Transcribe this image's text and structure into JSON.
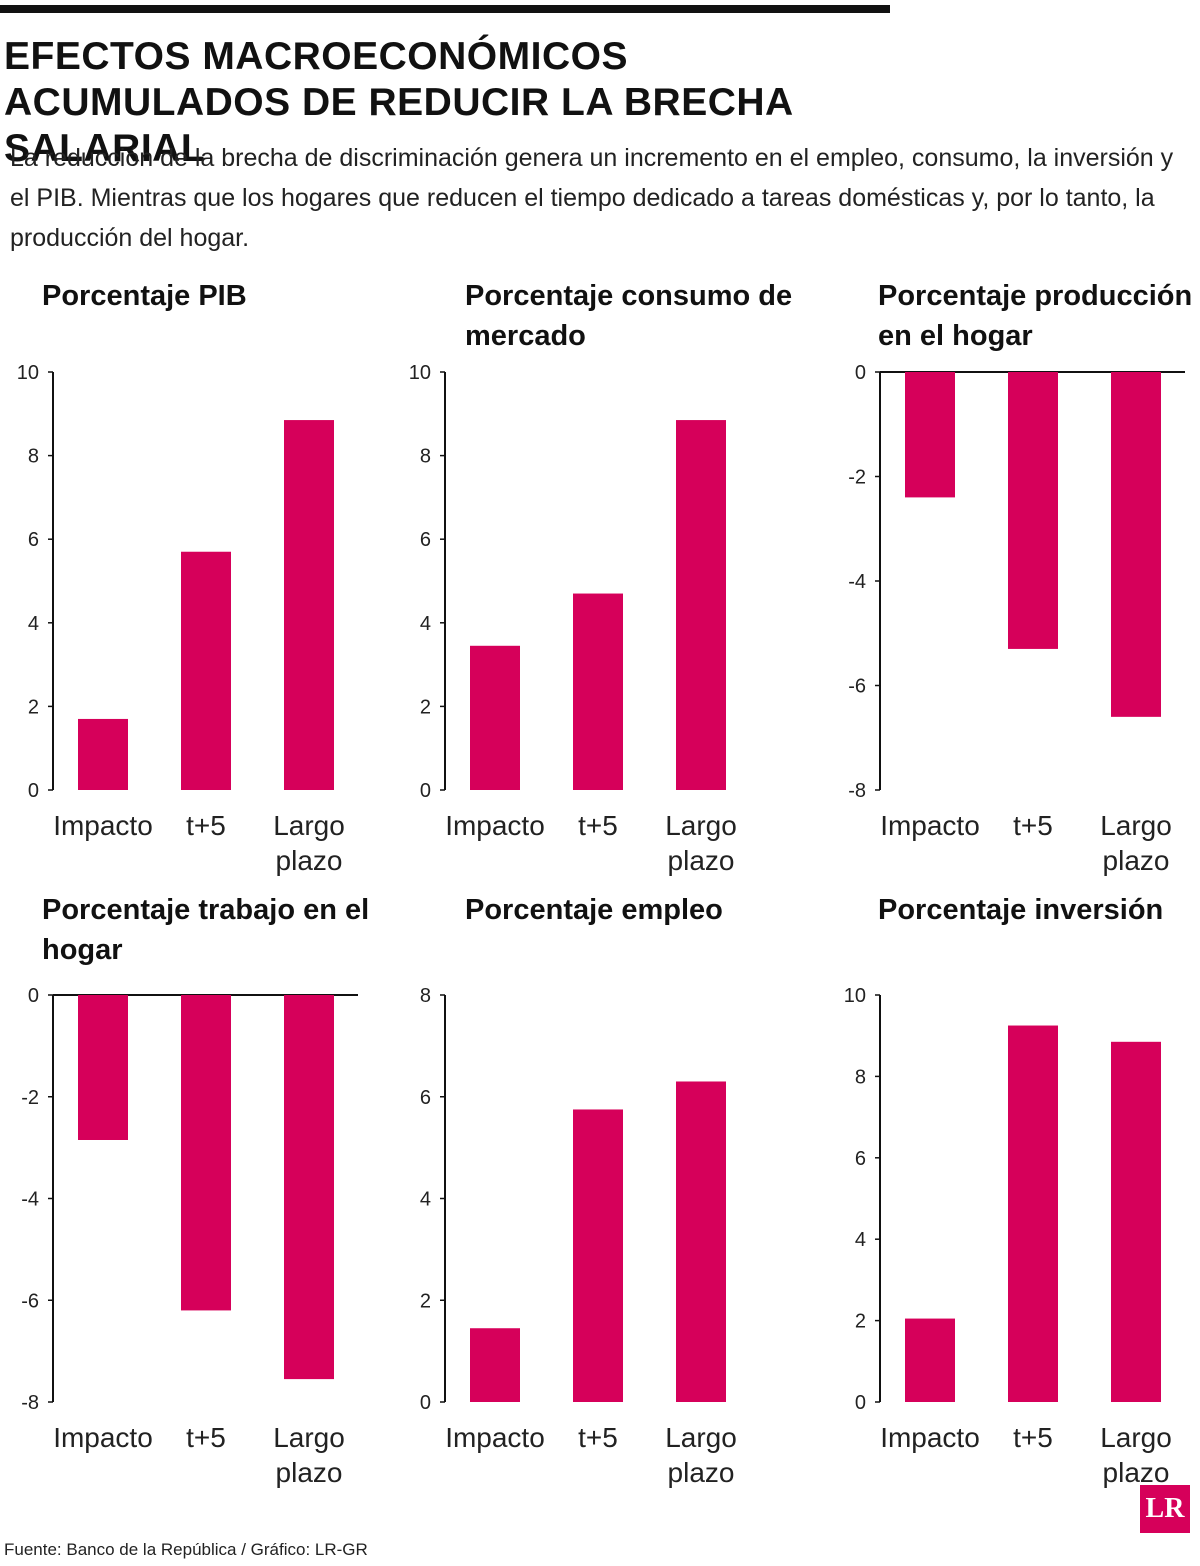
{
  "header": {
    "title": "EFECTOS MACROECONÓMICOS ACUMULADOS DE REDUCIR LA BRECHA SALARIAL",
    "subtitle": "La reducción de la brecha de discriminación genera un incremento en el empleo, consumo, la inversión y el PIB. Mientras que los hogares que reducen el tiempo dedicado a tareas domésticas y, por lo tanto, la producción del hogar."
  },
  "chart_data": [
    {
      "type": "bar",
      "title": "Porcentaje PIB",
      "categories": [
        "Impacto",
        "t+5",
        "Largo plazo"
      ],
      "values": [
        1.7,
        5.7,
        8.85
      ],
      "color": "#d6005a",
      "ylim": [
        0,
        10
      ],
      "yticks": [
        0,
        2,
        4,
        6,
        8,
        10
      ]
    },
    {
      "type": "bar",
      "title": "Porcentaje consumo de mercado",
      "categories": [
        "Impacto",
        "t+5",
        "Largo plazo"
      ],
      "values": [
        3.45,
        4.7,
        8.85
      ],
      "color": "#d6005a",
      "ylim": [
        0,
        10
      ],
      "yticks": [
        0,
        2,
        4,
        6,
        8,
        10
      ]
    },
    {
      "type": "bar",
      "title": "Porcentaje producción en el hogar",
      "categories": [
        "Impacto",
        "t+5",
        "Largo plazo"
      ],
      "values": [
        -2.4,
        -5.3,
        -6.6
      ],
      "color": "#d6005a",
      "ylim": [
        -8,
        0
      ],
      "yticks": [
        0,
        -2,
        -4,
        -6,
        -8
      ]
    },
    {
      "type": "bar",
      "title": "Porcentaje trabajo en el hogar",
      "categories": [
        "Impacto",
        "t+5",
        "Largo plazo"
      ],
      "values": [
        -2.85,
        -6.2,
        -7.55
      ],
      "color": "#d6005a",
      "ylim": [
        -8,
        0
      ],
      "yticks": [
        0,
        -2,
        -4,
        -6,
        -8
      ]
    },
    {
      "type": "bar",
      "title": "Porcentaje empleo",
      "categories": [
        "Impacto",
        "t+5",
        "Largo plazo"
      ],
      "values": [
        1.45,
        5.75,
        6.3
      ],
      "color": "#d6005a",
      "ylim": [
        0,
        8
      ],
      "yticks": [
        0,
        2,
        4,
        6,
        8
      ]
    },
    {
      "type": "bar",
      "title": "Porcentaje inversión",
      "categories": [
        "Impacto",
        "t+5",
        "Largo plazo"
      ],
      "values": [
        2.05,
        9.25,
        8.85
      ],
      "color": "#d6005a",
      "ylim": [
        0,
        10
      ],
      "yticks": [
        0,
        2,
        4,
        6,
        8,
        10
      ]
    }
  ],
  "footer": {
    "source": "Fuente: Banco de la República / Gráfico: LR-GR",
    "logo": "LR"
  }
}
